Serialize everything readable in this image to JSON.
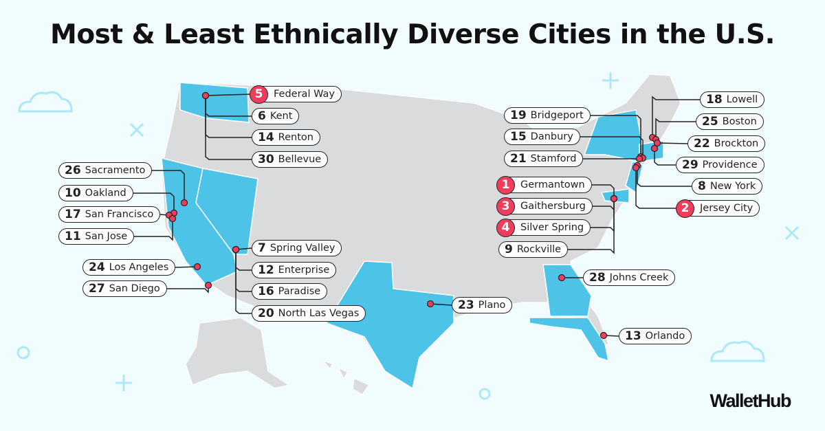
{
  "title": "Most & Least Ethnically Diverse Cities in the U.S.",
  "brand": "WalletHub",
  "colors": {
    "background": "#f0fcfe",
    "land": "#d9dbdc",
    "highlight": "#4dc3e8",
    "marker": "#ef3d5c",
    "outline": "#222222"
  },
  "cities": [
    {
      "rank": "5",
      "name": "Federal Way",
      "top5": true
    },
    {
      "rank": "6",
      "name": "Kent",
      "top5": false
    },
    {
      "rank": "14",
      "name": "Renton",
      "top5": false
    },
    {
      "rank": "30",
      "name": "Bellevue",
      "top5": false
    },
    {
      "rank": "26",
      "name": "Sacramento",
      "top5": false
    },
    {
      "rank": "10",
      "name": "Oakland",
      "top5": false
    },
    {
      "rank": "17",
      "name": "San Francisco",
      "top5": false
    },
    {
      "rank": "11",
      "name": "San Jose",
      "top5": false
    },
    {
      "rank": "24",
      "name": "Los Angeles",
      "top5": false
    },
    {
      "rank": "27",
      "name": "San Diego",
      "top5": false
    },
    {
      "rank": "7",
      "name": "Spring Valley",
      "top5": false
    },
    {
      "rank": "12",
      "name": "Enterprise",
      "top5": false
    },
    {
      "rank": "16",
      "name": "Paradise",
      "top5": false
    },
    {
      "rank": "20",
      "name": "North Las Vegas",
      "top5": false
    },
    {
      "rank": "23",
      "name": "Plano",
      "top5": false
    },
    {
      "rank": "28",
      "name": "Johns Creek",
      "top5": false
    },
    {
      "rank": "13",
      "name": "Orlando",
      "top5": false
    },
    {
      "rank": "19",
      "name": "Bridgeport",
      "top5": false
    },
    {
      "rank": "15",
      "name": "Danbury",
      "top5": false
    },
    {
      "rank": "21",
      "name": "Stamford",
      "top5": false
    },
    {
      "rank": "1",
      "name": "Germantown",
      "top5": true
    },
    {
      "rank": "3",
      "name": "Gaithersburg",
      "top5": true
    },
    {
      "rank": "4",
      "name": "Silver Spring",
      "top5": true
    },
    {
      "rank": "9",
      "name": "Rockville",
      "top5": false
    },
    {
      "rank": "18",
      "name": "Lowell",
      "top5": false
    },
    {
      "rank": "25",
      "name": "Boston",
      "top5": false
    },
    {
      "rank": "22",
      "name": "Brockton",
      "top5": false
    },
    {
      "rank": "29",
      "name": "Providence",
      "top5": false
    },
    {
      "rank": "8",
      "name": "New York",
      "top5": false
    },
    {
      "rank": "2",
      "name": "Jersey City",
      "top5": true
    }
  ]
}
